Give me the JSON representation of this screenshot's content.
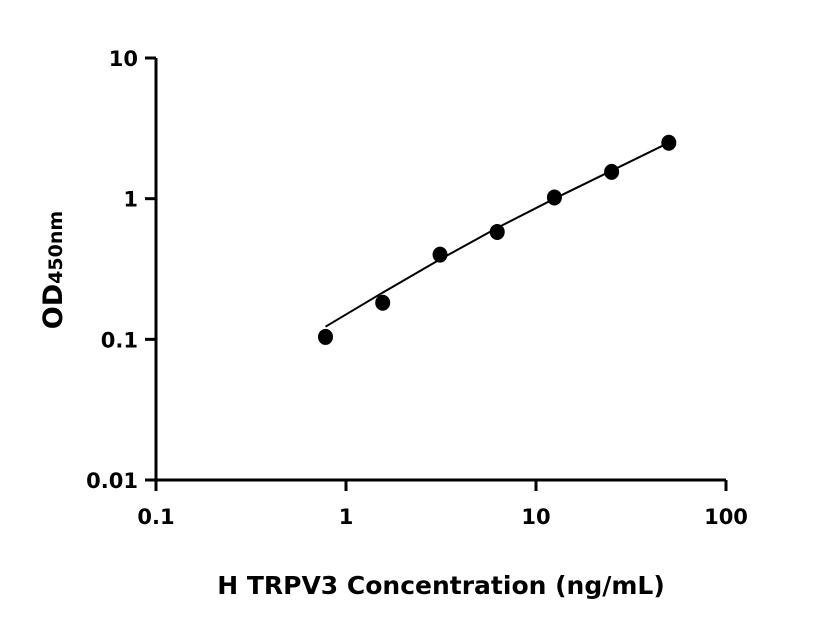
{
  "chart_data": {
    "type": "scatter",
    "title": "",
    "xlabel": "H TRPV3 Concentration (ng/mL)",
    "ylabel_main": "OD",
    "ylabel_sub": "450nm",
    "xscale": "log",
    "yscale": "log",
    "xlim": [
      0.1,
      100
    ],
    "ylim": [
      0.01,
      10
    ],
    "xticks": [
      {
        "v": 0.1,
        "label": "0.1"
      },
      {
        "v": 1,
        "label": "1"
      },
      {
        "v": 10,
        "label": "10"
      },
      {
        "v": 100,
        "label": "100"
      }
    ],
    "yticks": [
      {
        "v": 0.01,
        "label": "0.01"
      },
      {
        "v": 0.1,
        "label": "0.1"
      },
      {
        "v": 1,
        "label": "1"
      },
      {
        "v": 10,
        "label": "10"
      }
    ],
    "grid": false,
    "points": [
      {
        "x": 0.78,
        "y": 0.104
      },
      {
        "x": 1.56,
        "y": 0.182
      },
      {
        "x": 3.125,
        "y": 0.4
      },
      {
        "x": 6.25,
        "y": 0.58
      },
      {
        "x": 12.5,
        "y": 1.02
      },
      {
        "x": 25,
        "y": 1.55
      },
      {
        "x": 50,
        "y": 2.5
      }
    ],
    "fit_curve": [
      {
        "x": 0.78,
        "y": 0.123
      },
      {
        "x": 1.56,
        "y": 0.215
      },
      {
        "x": 3.125,
        "y": 0.37
      },
      {
        "x": 6.25,
        "y": 0.62
      },
      {
        "x": 12.5,
        "y": 1.0
      },
      {
        "x": 25,
        "y": 1.58
      },
      {
        "x": 50,
        "y": 2.5
      }
    ],
    "color": "#000000"
  }
}
